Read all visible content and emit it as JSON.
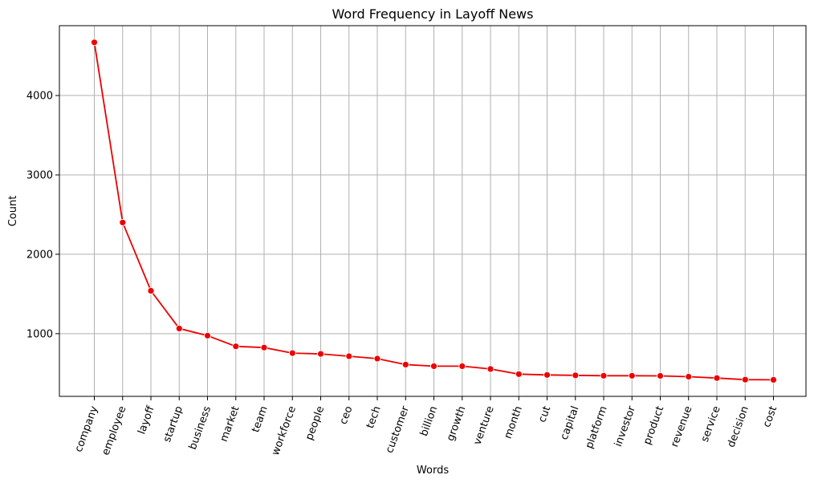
{
  "chart_data": {
    "type": "line",
    "title": "Word Frequency in Layoff News",
    "xlabel": "Words",
    "ylabel": "Count",
    "categories": [
      "company",
      "employee",
      "layoff",
      "startup",
      "business",
      "market",
      "team",
      "workforce",
      "people",
      "ceo",
      "tech",
      "customer",
      "billion",
      "growth",
      "venture",
      "month",
      "cut",
      "capital",
      "platform",
      "investor",
      "product",
      "revenue",
      "service",
      "decision",
      "cost"
    ],
    "series": [
      {
        "values": [
          4670,
          2400,
          1540,
          1065,
          975,
          840,
          825,
          755,
          745,
          715,
          685,
          610,
          590,
          590,
          555,
          490,
          480,
          475,
          470,
          470,
          468,
          458,
          440,
          420,
          418
        ]
      }
    ],
    "y_ticks": [
      1000,
      2000,
      3000,
      4000
    ],
    "ylim": [
      210,
      4880
    ],
    "grid": true,
    "line_color": "#ee0000",
    "marker_color": "#ee0000"
  }
}
